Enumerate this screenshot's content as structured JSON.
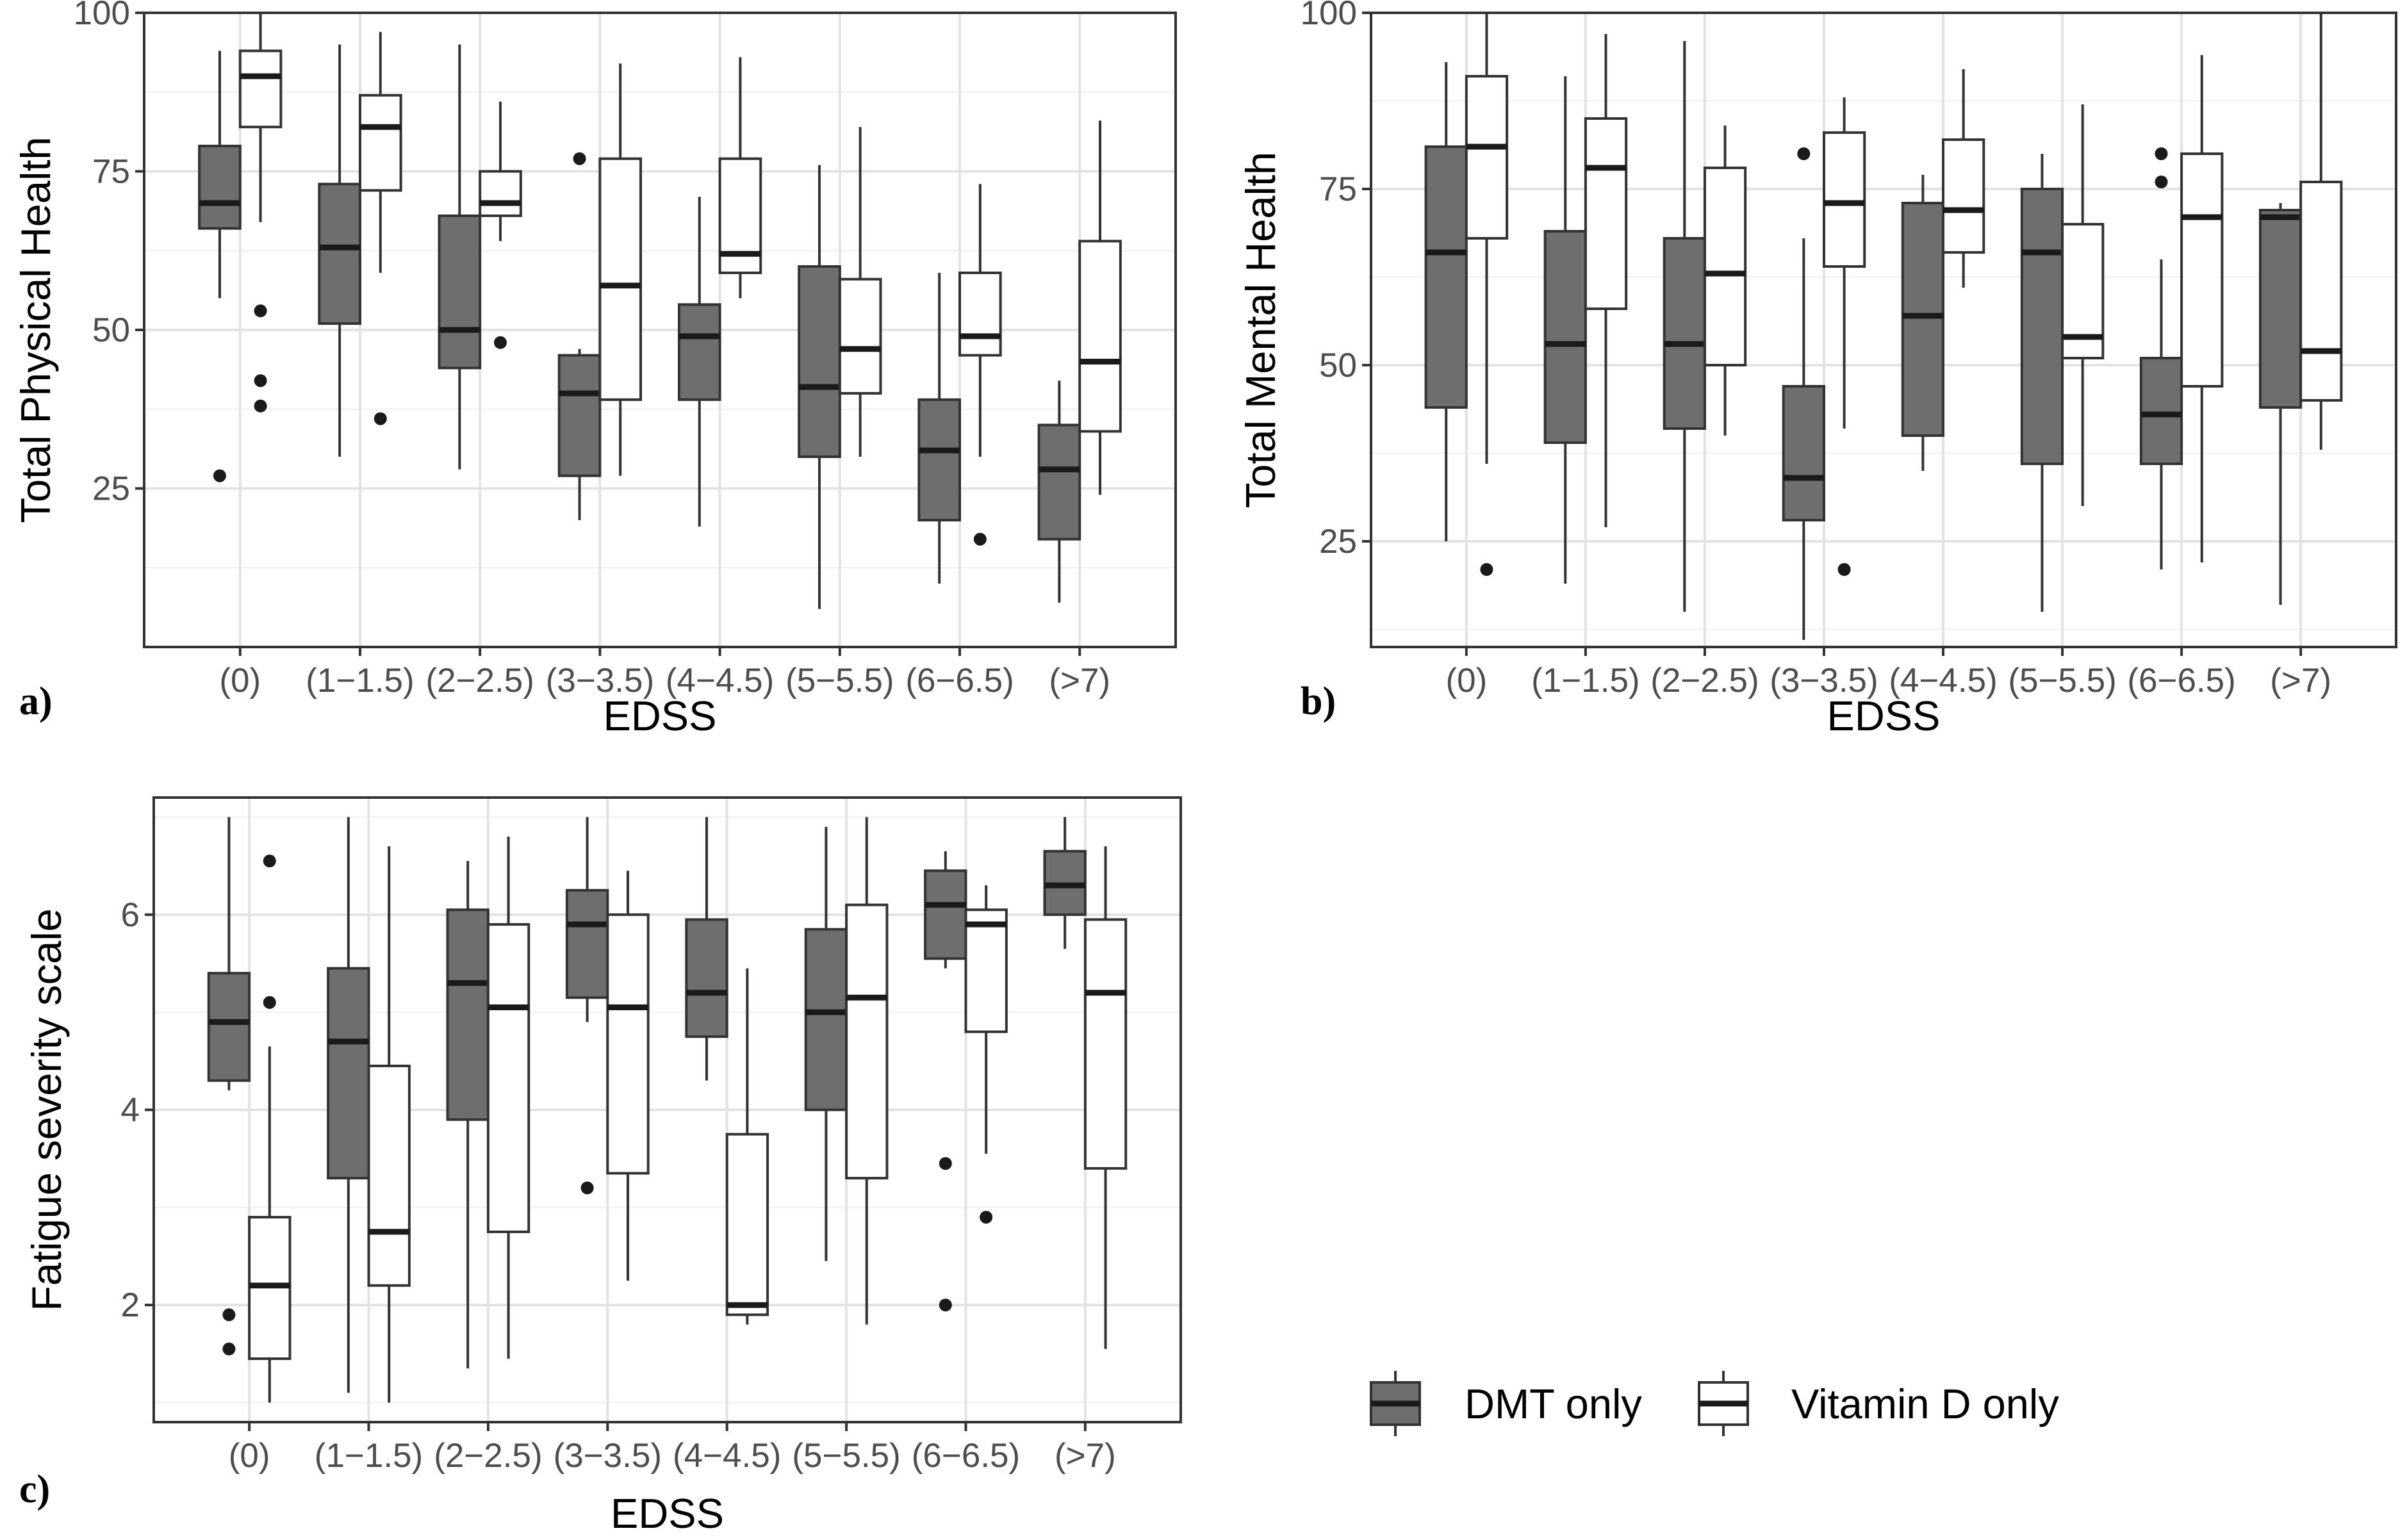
{
  "colors": {
    "dmt": "#6e6e6e",
    "vitd": "#ffffff"
  },
  "legend": {
    "items": [
      {
        "key": "dmt",
        "label": "DMT only"
      },
      {
        "key": "vitd",
        "label": "Vitamin D only"
      }
    ]
  },
  "chart_data": [
    {
      "type": "box",
      "panel": "a",
      "tag": "a)",
      "xlabel": "EDSS",
      "ylabel": "Total Physical Health",
      "ylim": [
        0,
        100
      ],
      "yticks": [
        25,
        50,
        75,
        100
      ],
      "categories": [
        "(0)",
        "(1−1.5)",
        "(2−2.5)",
        "(3−3.5)",
        "(4−4.5)",
        "(5−5.5)",
        "(6−6.5)",
        "(>7)"
      ],
      "series": [
        {
          "name": "DMT only",
          "key": "dmt",
          "boxes": [
            {
              "low": 55,
              "q1": 66,
              "median": 70,
              "q3": 79,
              "high": 94,
              "outliers": [
                27
              ]
            },
            {
              "low": 30,
              "q1": 51,
              "median": 63,
              "q3": 73,
              "high": 95,
              "outliers": []
            },
            {
              "low": 28,
              "q1": 44,
              "median": 50,
              "q3": 68,
              "high": 95,
              "outliers": []
            },
            {
              "low": 20,
              "q1": 27,
              "median": 40,
              "q3": 46,
              "high": 47,
              "outliers": [
                77
              ]
            },
            {
              "low": 19,
              "q1": 39,
              "median": 49,
              "q3": 54,
              "high": 71,
              "outliers": []
            },
            {
              "low": 6,
              "q1": 30,
              "median": 41,
              "q3": 60,
              "high": 76,
              "outliers": []
            },
            {
              "low": 10,
              "q1": 20,
              "median": 31,
              "q3": 39,
              "high": 59,
              "outliers": []
            },
            {
              "low": 7,
              "q1": 17,
              "median": 28,
              "q3": 35,
              "high": 42,
              "outliers": []
            }
          ]
        },
        {
          "name": "Vitamin D only",
          "key": "vitd",
          "boxes": [
            {
              "low": 67,
              "q1": 82,
              "median": 90,
              "q3": 94,
              "high": 100,
              "outliers": [
                53,
                42,
                38
              ]
            },
            {
              "low": 59,
              "q1": 72,
              "median": 82,
              "q3": 87,
              "high": 97,
              "outliers": [
                36
              ]
            },
            {
              "low": 64,
              "q1": 68,
              "median": 70,
              "q3": 75,
              "high": 86,
              "outliers": [
                48
              ]
            },
            {
              "low": 27,
              "q1": 39,
              "median": 57,
              "q3": 77,
              "high": 92,
              "outliers": []
            },
            {
              "low": 55,
              "q1": 59,
              "median": 62,
              "q3": 77,
              "high": 93,
              "outliers": []
            },
            {
              "low": 30,
              "q1": 40,
              "median": 47,
              "q3": 58,
              "high": 82,
              "outliers": []
            },
            {
              "low": 30,
              "q1": 46,
              "median": 49,
              "q3": 59,
              "high": 73,
              "outliers": [
                17
              ]
            },
            {
              "low": 24,
              "q1": 34,
              "median": 45,
              "q3": 64,
              "high": 83,
              "outliers": []
            }
          ]
        }
      ]
    },
    {
      "type": "box",
      "panel": "b",
      "tag": "b)",
      "xlabel": "EDSS",
      "ylabel": "Total Mental Health",
      "ylim": [
        10,
        100
      ],
      "yticks": [
        25,
        50,
        75,
        100
      ],
      "categories": [
        "(0)",
        "(1−1.5)",
        "(2−2.5)",
        "(3−3.5)",
        "(4−4.5)",
        "(5−5.5)",
        "(6−6.5)",
        "(>7)"
      ],
      "series": [
        {
          "name": "DMT only",
          "key": "dmt",
          "boxes": [
            {
              "low": 25,
              "q1": 44,
              "median": 66,
              "q3": 81,
              "high": 93,
              "outliers": []
            },
            {
              "low": 19,
              "q1": 39,
              "median": 53,
              "q3": 69,
              "high": 91,
              "outliers": []
            },
            {
              "low": 15,
              "q1": 41,
              "median": 53,
              "q3": 68,
              "high": 96,
              "outliers": []
            },
            {
              "low": 11,
              "q1": 28,
              "median": 34,
              "q3": 47,
              "high": 68,
              "outliers": [
                80
              ]
            },
            {
              "low": 35,
              "q1": 40,
              "median": 57,
              "q3": 73,
              "high": 77,
              "outliers": []
            },
            {
              "low": 15,
              "q1": 36,
              "median": 66,
              "q3": 75,
              "high": 80,
              "outliers": []
            },
            {
              "low": 21,
              "q1": 36,
              "median": 43,
              "q3": 51,
              "high": 65,
              "outliers": [
                80,
                76
              ]
            },
            {
              "low": 16,
              "q1": 44,
              "median": 71,
              "q3": 72,
              "high": 73,
              "outliers": []
            }
          ]
        },
        {
          "name": "Vitamin D only",
          "key": "vitd",
          "boxes": [
            {
              "low": 36,
              "q1": 68,
              "median": 81,
              "q3": 91,
              "high": 100,
              "outliers": [
                21
              ]
            },
            {
              "low": 27,
              "q1": 58,
              "median": 78,
              "q3": 85,
              "high": 97,
              "outliers": []
            },
            {
              "low": 40,
              "q1": 50,
              "median": 63,
              "q3": 78,
              "high": 84,
              "outliers": []
            },
            {
              "low": 41,
              "q1": 64,
              "median": 73,
              "q3": 83,
              "high": 88,
              "outliers": [
                21
              ]
            },
            {
              "low": 61,
              "q1": 66,
              "median": 72,
              "q3": 82,
              "high": 92,
              "outliers": []
            },
            {
              "low": 30,
              "q1": 51,
              "median": 54,
              "q3": 70,
              "high": 87,
              "outliers": []
            },
            {
              "low": 22,
              "q1": 47,
              "median": 71,
              "q3": 80,
              "high": 94,
              "outliers": []
            },
            {
              "low": 38,
              "q1": 45,
              "median": 52,
              "q3": 76,
              "high": 100,
              "outliers": []
            }
          ]
        }
      ]
    },
    {
      "type": "box",
      "panel": "c",
      "tag": "c)",
      "xlabel": "EDSS",
      "ylabel": "Fatigue severity scale",
      "ylim": [
        0.8,
        7.2
      ],
      "yticks": [
        2,
        4,
        6
      ],
      "categories": [
        "(0)",
        "(1−1.5)",
        "(2−2.5)",
        "(3−3.5)",
        "(4−4.5)",
        "(5−5.5)",
        "(6−6.5)",
        "(>7)"
      ],
      "series": [
        {
          "name": "DMT only",
          "key": "dmt",
          "boxes": [
            {
              "low": 4.2,
              "q1": 4.3,
              "median": 4.9,
              "q3": 5.4,
              "high": 7.0,
              "outliers": [
                1.9,
                1.55
              ]
            },
            {
              "low": 1.1,
              "q1": 3.3,
              "median": 4.7,
              "q3": 5.45,
              "high": 7.0,
              "outliers": []
            },
            {
              "low": 1.35,
              "q1": 3.9,
              "median": 5.3,
              "q3": 6.05,
              "high": 6.55,
              "outliers": []
            },
            {
              "low": 4.9,
              "q1": 5.15,
              "median": 5.9,
              "q3": 6.25,
              "high": 7.0,
              "outliers": [
                3.2
              ]
            },
            {
              "low": 4.3,
              "q1": 4.75,
              "median": 5.2,
              "q3": 5.95,
              "high": 7.0,
              "outliers": []
            },
            {
              "low": 2.45,
              "q1": 4.0,
              "median": 5.0,
              "q3": 5.85,
              "high": 6.9,
              "outliers": []
            },
            {
              "low": 5.45,
              "q1": 5.55,
              "median": 6.1,
              "q3": 6.45,
              "high": 6.65,
              "outliers": [
                3.45,
                2.0
              ]
            },
            {
              "low": 5.65,
              "q1": 6.0,
              "median": 6.3,
              "q3": 6.65,
              "high": 7.0,
              "outliers": []
            }
          ]
        },
        {
          "name": "Vitamin D only",
          "key": "vitd",
          "boxes": [
            {
              "low": 1.0,
              "q1": 1.45,
              "median": 2.2,
              "q3": 2.9,
              "high": 4.65,
              "outliers": [
                6.55,
                5.1
              ]
            },
            {
              "low": 1.0,
              "q1": 2.2,
              "median": 2.75,
              "q3": 4.45,
              "high": 6.7,
              "outliers": []
            },
            {
              "low": 1.45,
              "q1": 2.75,
              "median": 5.05,
              "q3": 5.9,
              "high": 6.8,
              "outliers": []
            },
            {
              "low": 2.25,
              "q1": 3.35,
              "median": 5.05,
              "q3": 6.0,
              "high": 6.45,
              "outliers": []
            },
            {
              "low": 1.8,
              "q1": 1.9,
              "median": 2.0,
              "q3": 3.75,
              "high": 5.45,
              "outliers": []
            },
            {
              "low": 1.8,
              "q1": 3.3,
              "median": 5.15,
              "q3": 6.1,
              "high": 7.0,
              "outliers": []
            },
            {
              "low": 3.55,
              "q1": 4.8,
              "median": 5.9,
              "q3": 6.05,
              "high": 6.3,
              "outliers": [
                2.9
              ]
            },
            {
              "low": 1.55,
              "q1": 3.4,
              "median": 5.2,
              "q3": 5.95,
              "high": 6.7,
              "outliers": []
            }
          ]
        }
      ]
    }
  ]
}
